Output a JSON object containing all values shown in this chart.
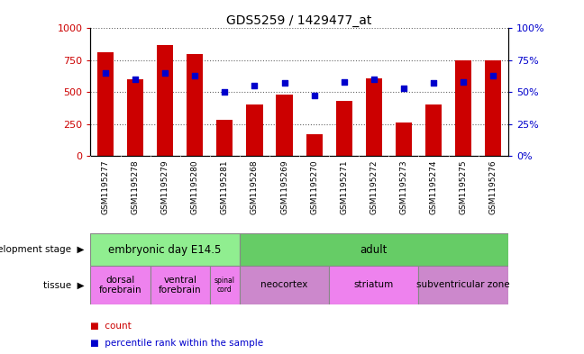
{
  "title": "GDS5259 / 1429477_at",
  "samples": [
    "GSM1195277",
    "GSM1195278",
    "GSM1195279",
    "GSM1195280",
    "GSM1195281",
    "GSM1195268",
    "GSM1195269",
    "GSM1195270",
    "GSM1195271",
    "GSM1195272",
    "GSM1195273",
    "GSM1195274",
    "GSM1195275",
    "GSM1195276"
  ],
  "counts": [
    810,
    600,
    870,
    800,
    280,
    400,
    480,
    170,
    430,
    610,
    260,
    400,
    750,
    750
  ],
  "percentiles": [
    65,
    60,
    65,
    63,
    50,
    55,
    57,
    47,
    58,
    60,
    53,
    57,
    58,
    63
  ],
  "bar_color": "#cc0000",
  "dot_color": "#0000cc",
  "ylim_left": [
    0,
    1000
  ],
  "ylim_right": [
    0,
    100
  ],
  "yticks_left": [
    0,
    250,
    500,
    750,
    1000
  ],
  "ytick_labels_left": [
    "0",
    "250",
    "500",
    "750",
    "1000"
  ],
  "yticks_right": [
    0,
    25,
    50,
    75,
    100
  ],
  "ytick_labels_right": [
    "0%",
    "25%",
    "50%",
    "75%",
    "100%"
  ],
  "dev_stage_embryonic_label": "embryonic day E14.5",
  "dev_stage_embryonic_cols": 5,
  "dev_stage_embryonic_color": "#90ee90",
  "dev_stage_adult_label": "adult",
  "dev_stage_adult_cols": 9,
  "dev_stage_adult_color": "#66cc66",
  "tissue_starts": [
    0,
    2,
    4,
    5,
    8,
    11
  ],
  "tissue_widths": [
    2,
    2,
    1,
    3,
    3,
    3
  ],
  "tissue_labels": [
    "dorsal\nforebrain",
    "ventral\nforebrain",
    "spinal\ncord",
    "neocortex",
    "striatum",
    "subventricular zone"
  ],
  "tissue_colors": [
    "#ee82ee",
    "#ee82ee",
    "#ee82ee",
    "#cc88cc",
    "#ee82ee",
    "#cc88cc"
  ],
  "legend_count_label": "count",
  "legend_pct_label": "percentile rank within the sample",
  "dev_stage_label": "development stage",
  "tissue_label": "tissue",
  "xtick_bg_color": "#c8c8c8",
  "bar_width": 0.55
}
